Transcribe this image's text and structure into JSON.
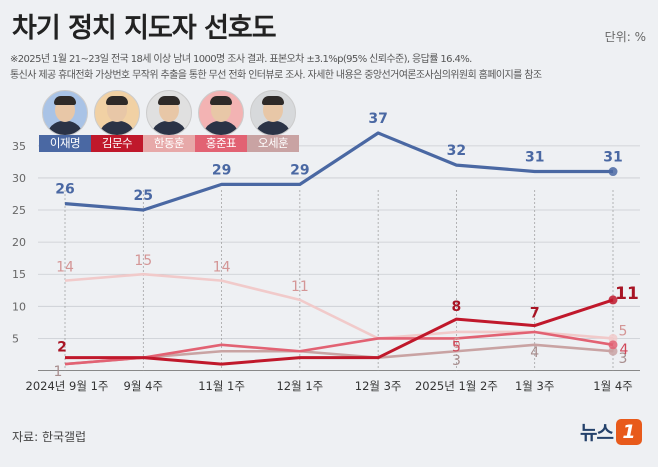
{
  "title": "차기 정치 지도자 선호도",
  "unit": "단위: %",
  "notes": [
    "※2025년 1월 21~23일 전국 18세 이상 남녀 1000명 조사 결과. 표본오차 ±3.1%p(95% 신뢰수준), 응답률 16.4%.",
    "통신사 제공 휴대전화 가상번호 무작위 추출을 통한 무선 전화 인터뷰로 조사. 자세한 내용은 중앙선거여론조사심의위원회 홈페이지를 참조"
  ],
  "source": "자료: 한국갤럽",
  "logo": {
    "text": "뉴스",
    "mark": "1"
  },
  "candidates": [
    {
      "name": "이재명",
      "color": "#4a68a3",
      "photo_bg": "#a9c3e6"
    },
    {
      "name": "김문수",
      "color": "#c0182b",
      "photo_bg": "#f1d1a4"
    },
    {
      "name": "한동훈",
      "color": "#e7a9a9",
      "photo_bg": "#e0e0e0"
    },
    {
      "name": "홍준표",
      "color": "#e26273",
      "photo_bg": "#f3b3b3"
    },
    {
      "name": "오세훈",
      "color": "#c9a3a3",
      "photo_bg": "#d7d9db"
    }
  ],
  "chart_data": {
    "type": "line",
    "categories": [
      "2024년 9월 1주",
      "9월 4주",
      "11월 1주",
      "12월 1주",
      "12월 3주",
      "2025년 1월 2주",
      "1월 3주",
      "1월 4주"
    ],
    "ylim": [
      0,
      37
    ],
    "yticks": [
      5,
      10,
      15,
      20,
      25,
      30,
      35
    ],
    "grid": "y",
    "series": [
      {
        "name": "오세훈",
        "color": "#c9a3a3",
        "values": [
          1,
          2,
          3,
          3,
          2,
          3,
          4,
          3
        ],
        "labels": [
          "1",
          null,
          null,
          null,
          null,
          "3",
          "4",
          "3"
        ]
      },
      {
        "name": "한동훈",
        "color": "#f1caca",
        "values": [
          14,
          15,
          14,
          11,
          5,
          6,
          6,
          5
        ],
        "labels": [
          "14",
          "15",
          "14",
          "11",
          null,
          "6",
          null,
          "5"
        ]
      },
      {
        "name": "홍준표",
        "color": "#e26273",
        "values": [
          1,
          2,
          4,
          3,
          5,
          5,
          6,
          4
        ],
        "labels": [
          null,
          null,
          null,
          null,
          null,
          "5",
          null,
          "4"
        ]
      },
      {
        "name": "김문수",
        "color": "#c0182b",
        "values": [
          2,
          2,
          1,
          2,
          2,
          8,
          7,
          11
        ],
        "labels": [
          "2",
          null,
          null,
          null,
          null,
          "8",
          "7",
          "11"
        ]
      },
      {
        "name": "이재명",
        "color": "#4a68a3",
        "values": [
          26,
          25,
          29,
          29,
          37,
          32,
          31,
          31
        ],
        "labels": [
          "26",
          "25",
          "29",
          "29",
          "37",
          "32",
          "31",
          "31"
        ]
      }
    ]
  }
}
